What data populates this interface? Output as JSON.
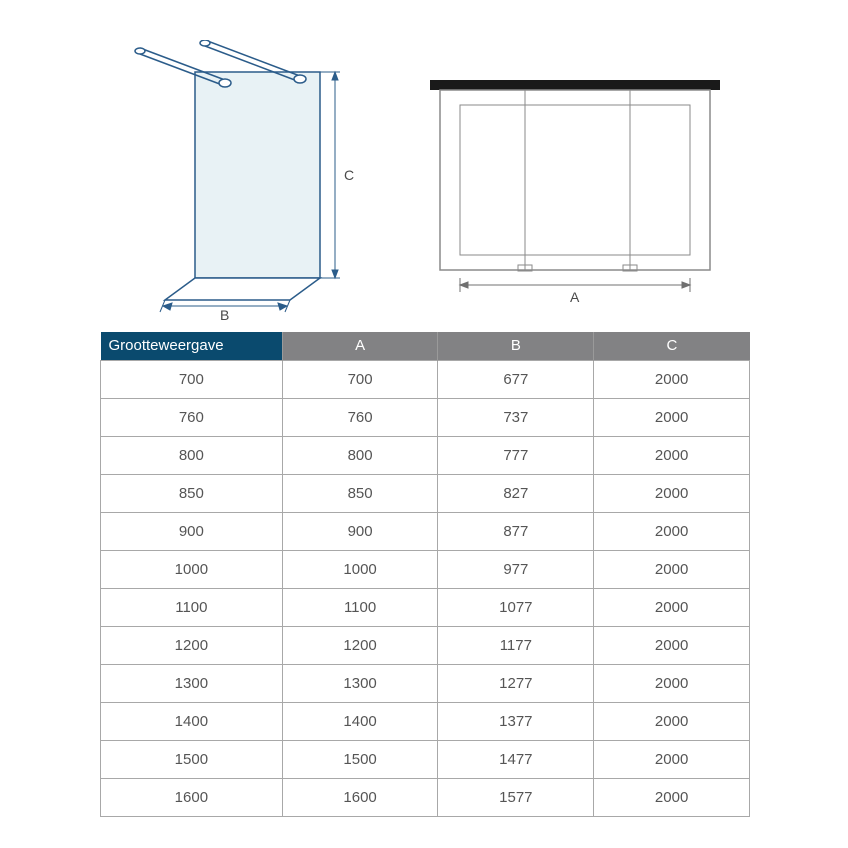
{
  "diagrams": {
    "left": {
      "label_b": "B",
      "label_c": "C",
      "panel_fill": "#e8f2f5",
      "stroke": "#2b5c8a",
      "dim_stroke": "#2b5c8a"
    },
    "right": {
      "label_a": "A",
      "stroke": "#707070",
      "top_bar_fill": "#1a1a1a"
    }
  },
  "table": {
    "header_bg_first": "#0a4a6e",
    "header_bg_rest": "#828284",
    "header_text_color": "#ffffff",
    "border_color": "#a8a8a8",
    "cell_text_color": "#555555",
    "columns": [
      "Grootteweergave",
      "A",
      "B",
      "C"
    ],
    "rows": [
      [
        "700",
        "700",
        "677",
        "2000"
      ],
      [
        "760",
        "760",
        "737",
        "2000"
      ],
      [
        "800",
        "800",
        "777",
        "2000"
      ],
      [
        "850",
        "850",
        "827",
        "2000"
      ],
      [
        "900",
        "900",
        "877",
        "2000"
      ],
      [
        "1000",
        "1000",
        "977",
        "2000"
      ],
      [
        "1100",
        "1100",
        "1077",
        "2000"
      ],
      [
        "1200",
        "1200",
        "1177",
        "2000"
      ],
      [
        "1300",
        "1300",
        "1277",
        "2000"
      ],
      [
        "1400",
        "1400",
        "1377",
        "2000"
      ],
      [
        "1500",
        "1500",
        "1477",
        "2000"
      ],
      [
        "1600",
        "1600",
        "1577",
        "2000"
      ]
    ]
  }
}
